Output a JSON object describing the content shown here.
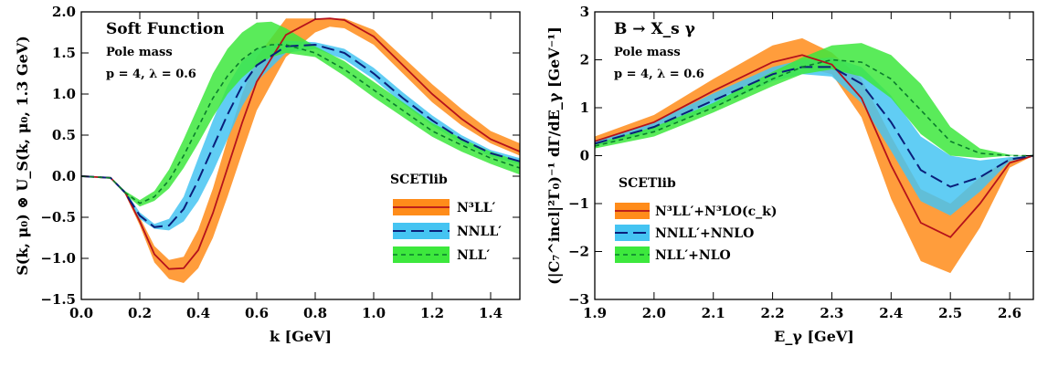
{
  "chart_data": [
    {
      "type": "line",
      "xlabel": "k [GeV]",
      "ylabel": "S(k, μ₀) ⊗ U_S(k, μ₀, 1.3 GeV)",
      "xlim": [
        0.0,
        1.5
      ],
      "ylim": [
        -1.5,
        2.0
      ],
      "xticks": [
        "0.0",
        "0.2",
        "0.4",
        "0.6",
        "0.8",
        "1.0",
        "1.2",
        "1.4"
      ],
      "yticks": [
        "−1.5",
        "−1.0",
        "−0.5",
        "0.0",
        "0.5",
        "1.0",
        "1.5",
        "2.0"
      ],
      "annotations": [
        "Soft Function",
        "Pole mass",
        "p = 4, λ = 0.6"
      ],
      "legend_title": "SCETlib",
      "legend_placement": "right",
      "grid": false,
      "series": [
        {
          "name": "N³LL′",
          "color": "#b5121b",
          "band_color": "#ff8c1a",
          "dash": "solid",
          "x": [
            0.0,
            0.1,
            0.15,
            0.2,
            0.25,
            0.3,
            0.35,
            0.4,
            0.45,
            0.5,
            0.55,
            0.6,
            0.7,
            0.8,
            0.85,
            0.9,
            1.0,
            1.1,
            1.2,
            1.3,
            1.4,
            1.5
          ],
          "y": [
            0.0,
            -0.02,
            -0.2,
            -0.55,
            -0.95,
            -1.13,
            -1.12,
            -0.9,
            -0.45,
            0.1,
            0.65,
            1.15,
            1.72,
            1.91,
            1.92,
            1.9,
            1.7,
            1.35,
            1.0,
            0.7,
            0.45,
            0.3
          ],
          "low": [
            0.0,
            -0.02,
            -0.22,
            -0.6,
            -1.05,
            -1.25,
            -1.3,
            -1.12,
            -0.75,
            -0.25,
            0.28,
            0.8,
            1.45,
            1.75,
            1.82,
            1.8,
            1.6,
            1.25,
            0.9,
            0.62,
            0.4,
            0.25
          ],
          "high": [
            0.0,
            -0.02,
            -0.18,
            -0.5,
            -0.85,
            -1.02,
            -0.98,
            -0.65,
            -0.15,
            0.45,
            1.0,
            1.45,
            1.92,
            1.92,
            1.92,
            1.92,
            1.78,
            1.45,
            1.12,
            0.82,
            0.55,
            0.4
          ]
        },
        {
          "name": "NNLL′",
          "color": "#0a1f7a",
          "band_color": "#45c4f2",
          "dash": "long",
          "x": [
            0.0,
            0.1,
            0.15,
            0.2,
            0.25,
            0.3,
            0.35,
            0.4,
            0.45,
            0.5,
            0.55,
            0.6,
            0.7,
            0.8,
            0.9,
            1.0,
            1.1,
            1.2,
            1.3,
            1.4,
            1.5
          ],
          "y": [
            0.0,
            -0.02,
            -0.2,
            -0.48,
            -0.62,
            -0.6,
            -0.4,
            -0.05,
            0.35,
            0.75,
            1.1,
            1.35,
            1.58,
            1.6,
            1.5,
            1.25,
            0.95,
            0.68,
            0.45,
            0.28,
            0.18
          ],
          "low": [
            0.0,
            -0.02,
            -0.22,
            -0.52,
            -0.64,
            -0.66,
            -0.55,
            -0.3,
            0.05,
            0.45,
            0.85,
            1.15,
            1.5,
            1.55,
            1.42,
            1.18,
            0.88,
            0.62,
            0.4,
            0.24,
            0.14
          ],
          "high": [
            0.0,
            -0.02,
            -0.18,
            -0.44,
            -0.58,
            -0.52,
            -0.25,
            0.22,
            0.68,
            1.1,
            1.4,
            1.55,
            1.65,
            1.63,
            1.55,
            1.32,
            1.02,
            0.74,
            0.5,
            0.32,
            0.22
          ]
        },
        {
          "name": "NLL′",
          "color": "#0a7d2c",
          "band_color": "#3de83d",
          "dash": "short",
          "x": [
            0.0,
            0.1,
            0.15,
            0.2,
            0.25,
            0.3,
            0.35,
            0.4,
            0.45,
            0.5,
            0.55,
            0.6,
            0.65,
            0.7,
            0.8,
            0.9,
            1.0,
            1.1,
            1.2,
            1.3,
            1.4,
            1.5
          ],
          "y": [
            0.0,
            -0.02,
            -0.2,
            -0.33,
            -0.25,
            -0.05,
            0.25,
            0.6,
            0.95,
            1.22,
            1.42,
            1.55,
            1.6,
            1.6,
            1.5,
            1.3,
            1.05,
            0.8,
            0.55,
            0.38,
            0.22,
            0.1
          ],
          "low": [
            0.0,
            -0.02,
            -0.22,
            -0.37,
            -0.3,
            -0.15,
            0.1,
            0.4,
            0.72,
            1.0,
            1.2,
            1.35,
            1.45,
            1.5,
            1.45,
            1.22,
            0.96,
            0.72,
            0.48,
            0.3,
            0.15,
            0.02
          ],
          "high": [
            0.0,
            -0.02,
            -0.18,
            -0.29,
            -0.18,
            0.08,
            0.45,
            0.85,
            1.25,
            1.55,
            1.75,
            1.87,
            1.88,
            1.8,
            1.58,
            1.4,
            1.15,
            0.9,
            0.65,
            0.46,
            0.3,
            0.18
          ]
        }
      ]
    },
    {
      "type": "line",
      "xlabel": "E_γ [GeV]",
      "ylabel": "(|C₇^incl|²Γ₀)⁻¹ dΓ/dE_γ [GeV⁻¹]",
      "xlim": [
        1.9,
        2.64
      ],
      "ylim": [
        -3,
        3
      ],
      "xticks": [
        "1.9",
        "2.0",
        "2.1",
        "2.2",
        "2.3",
        "2.4",
        "2.5",
        "2.6"
      ],
      "yticks": [
        "−3",
        "−2",
        "−1",
        "0",
        "1",
        "2",
        "3"
      ],
      "annotations": [
        "B → X_s γ",
        "Pole mass",
        "p = 4, λ = 0.6"
      ],
      "legend_title": "SCETlib",
      "legend_placement": "lower left",
      "grid": false,
      "series": [
        {
          "name": "N³LL′+N³LO(c_k)",
          "color": "#b5121b",
          "band_color": "#ff8c1a",
          "dash": "solid",
          "x": [
            1.9,
            2.0,
            2.1,
            2.2,
            2.25,
            2.3,
            2.35,
            2.4,
            2.45,
            2.5,
            2.55,
            2.6,
            2.64
          ],
          "y": [
            0.3,
            0.7,
            1.35,
            1.95,
            2.1,
            1.9,
            1.2,
            -0.2,
            -1.4,
            -1.7,
            -1.0,
            -0.15,
            0.0
          ],
          "low": [
            0.2,
            0.55,
            1.15,
            1.7,
            1.85,
            1.7,
            0.8,
            -0.9,
            -2.2,
            -2.45,
            -1.5,
            -0.25,
            0.0
          ],
          "high": [
            0.4,
            0.85,
            1.6,
            2.3,
            2.45,
            2.15,
            1.6,
            0.4,
            -0.7,
            -1.0,
            -0.45,
            -0.05,
            0.0
          ]
        },
        {
          "name": "NNLL′+NNLO",
          "color": "#0a1f7a",
          "band_color": "#45c4f2",
          "dash": "long",
          "x": [
            1.9,
            2.0,
            2.1,
            2.2,
            2.25,
            2.3,
            2.35,
            2.4,
            2.45,
            2.5,
            2.55,
            2.6,
            2.64
          ],
          "y": [
            0.25,
            0.6,
            1.15,
            1.7,
            1.85,
            1.85,
            1.5,
            0.7,
            -0.3,
            -0.65,
            -0.45,
            -0.08,
            0.0
          ],
          "low": [
            0.2,
            0.5,
            1.0,
            1.55,
            1.7,
            1.65,
            1.1,
            0.1,
            -0.95,
            -1.25,
            -0.75,
            -0.12,
            0.0
          ],
          "high": [
            0.3,
            0.7,
            1.3,
            1.85,
            2.0,
            2.05,
            1.85,
            1.25,
            0.4,
            0.0,
            -0.1,
            -0.03,
            0.0
          ]
        },
        {
          "name": "NLL′+NLO",
          "color": "#0a7d2c",
          "band_color": "#3de83d",
          "dash": "short",
          "x": [
            1.9,
            2.0,
            2.1,
            2.2,
            2.25,
            2.3,
            2.35,
            2.4,
            2.45,
            2.5,
            2.55,
            2.6,
            2.64
          ],
          "y": [
            0.2,
            0.5,
            1.0,
            1.6,
            1.85,
            2.0,
            1.95,
            1.6,
            0.95,
            0.3,
            0.05,
            0.0,
            0.0
          ],
          "low": [
            0.15,
            0.4,
            0.9,
            1.45,
            1.7,
            1.8,
            1.65,
            1.2,
            0.45,
            0.0,
            -0.05,
            0.0,
            0.0
          ],
          "high": [
            0.25,
            0.6,
            1.1,
            1.75,
            2.05,
            2.3,
            2.35,
            2.1,
            1.5,
            0.6,
            0.15,
            0.02,
            0.0
          ]
        }
      ]
    }
  ]
}
